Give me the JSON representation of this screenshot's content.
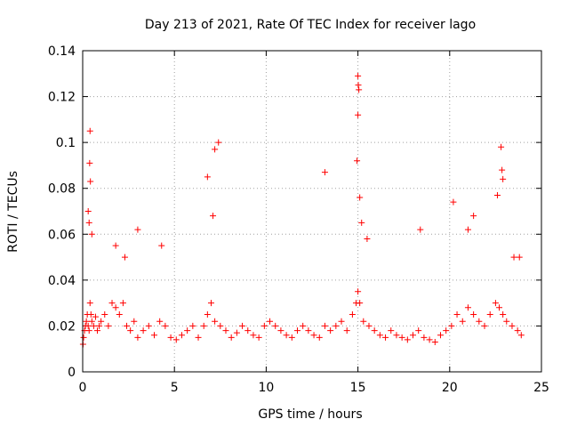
{
  "chart_data": {
    "type": "scatter",
    "title": "Day 213 of 2021, Rate Of TEC Index for receiver lago",
    "xlabel": "GPS time / hours",
    "ylabel": "ROTI / TECUs",
    "xlim": [
      0,
      25
    ],
    "ylim": [
      0,
      0.14
    ],
    "x_ticks": [
      0,
      5,
      10,
      15,
      20,
      25
    ],
    "x_tick_labels": [
      "0",
      "5",
      "10",
      "15",
      "20",
      "25"
    ],
    "y_ticks": [
      0,
      0.02,
      0.04,
      0.06,
      0.08,
      0.1,
      0.12,
      0.14
    ],
    "y_tick_labels": [
      "0",
      "0.02",
      "0.04",
      "0.06",
      "0.08",
      "0.1",
      "0.12",
      "0.14"
    ],
    "grid": true,
    "marker": "+",
    "marker_color": "#ff0000",
    "series": [
      {
        "name": "ROTI",
        "x": [
          0.02,
          0.05,
          0.1,
          0.15,
          0.2,
          0.25,
          0.3,
          0.35,
          0.4,
          0.45,
          0.5,
          0.6,
          0.7,
          0.8,
          0.9,
          1.0,
          1.2,
          1.4,
          1.6,
          1.8,
          2.0,
          2.2,
          2.4,
          2.6,
          2.8,
          3.0,
          3.3,
          3.6,
          3.9,
          4.2,
          4.5,
          4.8,
          5.1,
          5.4,
          5.7,
          6.0,
          6.3,
          6.6,
          6.8,
          7.0,
          7.2,
          7.5,
          7.8,
          8.1,
          8.4,
          8.7,
          9.0,
          9.3,
          9.6,
          9.9,
          10.2,
          10.5,
          10.8,
          11.1,
          11.4,
          11.7,
          12.0,
          12.3,
          12.6,
          12.9,
          13.2,
          13.5,
          13.8,
          14.1,
          14.4,
          14.7,
          14.9,
          15.0,
          15.1,
          15.3,
          15.6,
          15.9,
          16.2,
          16.5,
          16.8,
          17.1,
          17.4,
          17.7,
          18.0,
          18.3,
          18.6,
          18.9,
          19.2,
          19.5,
          19.8,
          20.1,
          20.4,
          20.7,
          21.0,
          21.3,
          21.6,
          21.9,
          22.2,
          22.5,
          22.7,
          22.9,
          23.1,
          23.4,
          23.7,
          23.9,
          0.35,
          0.38,
          0.4,
          0.42,
          0.3,
          0.5,
          1.8,
          2.3,
          3.0,
          4.3,
          6.8,
          7.1,
          7.2,
          7.4,
          13.2,
          14.95,
          15.0,
          15.02,
          15.05,
          15.0,
          15.1,
          15.2,
          15.5,
          18.4,
          20.2,
          21.0,
          21.3,
          22.6,
          22.8,
          22.85,
          22.9,
          23.5,
          23.8
        ],
        "y": [
          0.012,
          0.015,
          0.018,
          0.02,
          0.022,
          0.025,
          0.02,
          0.018,
          0.03,
          0.025,
          0.022,
          0.02,
          0.024,
          0.018,
          0.02,
          0.022,
          0.025,
          0.02,
          0.03,
          0.028,
          0.025,
          0.03,
          0.02,
          0.018,
          0.022,
          0.015,
          0.018,
          0.02,
          0.016,
          0.022,
          0.02,
          0.015,
          0.014,
          0.016,
          0.018,
          0.02,
          0.015,
          0.02,
          0.025,
          0.03,
          0.022,
          0.02,
          0.018,
          0.015,
          0.017,
          0.02,
          0.018,
          0.016,
          0.015,
          0.02,
          0.022,
          0.02,
          0.018,
          0.016,
          0.015,
          0.018,
          0.02,
          0.018,
          0.016,
          0.015,
          0.02,
          0.018,
          0.02,
          0.022,
          0.018,
          0.025,
          0.03,
          0.035,
          0.03,
          0.022,
          0.02,
          0.018,
          0.016,
          0.015,
          0.018,
          0.016,
          0.015,
          0.014,
          0.016,
          0.018,
          0.015,
          0.014,
          0.013,
          0.016,
          0.018,
          0.02,
          0.025,
          0.022,
          0.028,
          0.025,
          0.022,
          0.02,
          0.025,
          0.03,
          0.028,
          0.025,
          0.022,
          0.02,
          0.018,
          0.016,
          0.065,
          0.091,
          0.105,
          0.083,
          0.07,
          0.06,
          0.055,
          0.05,
          0.062,
          0.055,
          0.085,
          0.068,
          0.097,
          0.1,
          0.087,
          0.092,
          0.129,
          0.125,
          0.123,
          0.112,
          0.076,
          0.065,
          0.058,
          0.062,
          0.074,
          0.062,
          0.068,
          0.077,
          0.098,
          0.088,
          0.084,
          0.05,
          0.05
        ]
      }
    ]
  }
}
